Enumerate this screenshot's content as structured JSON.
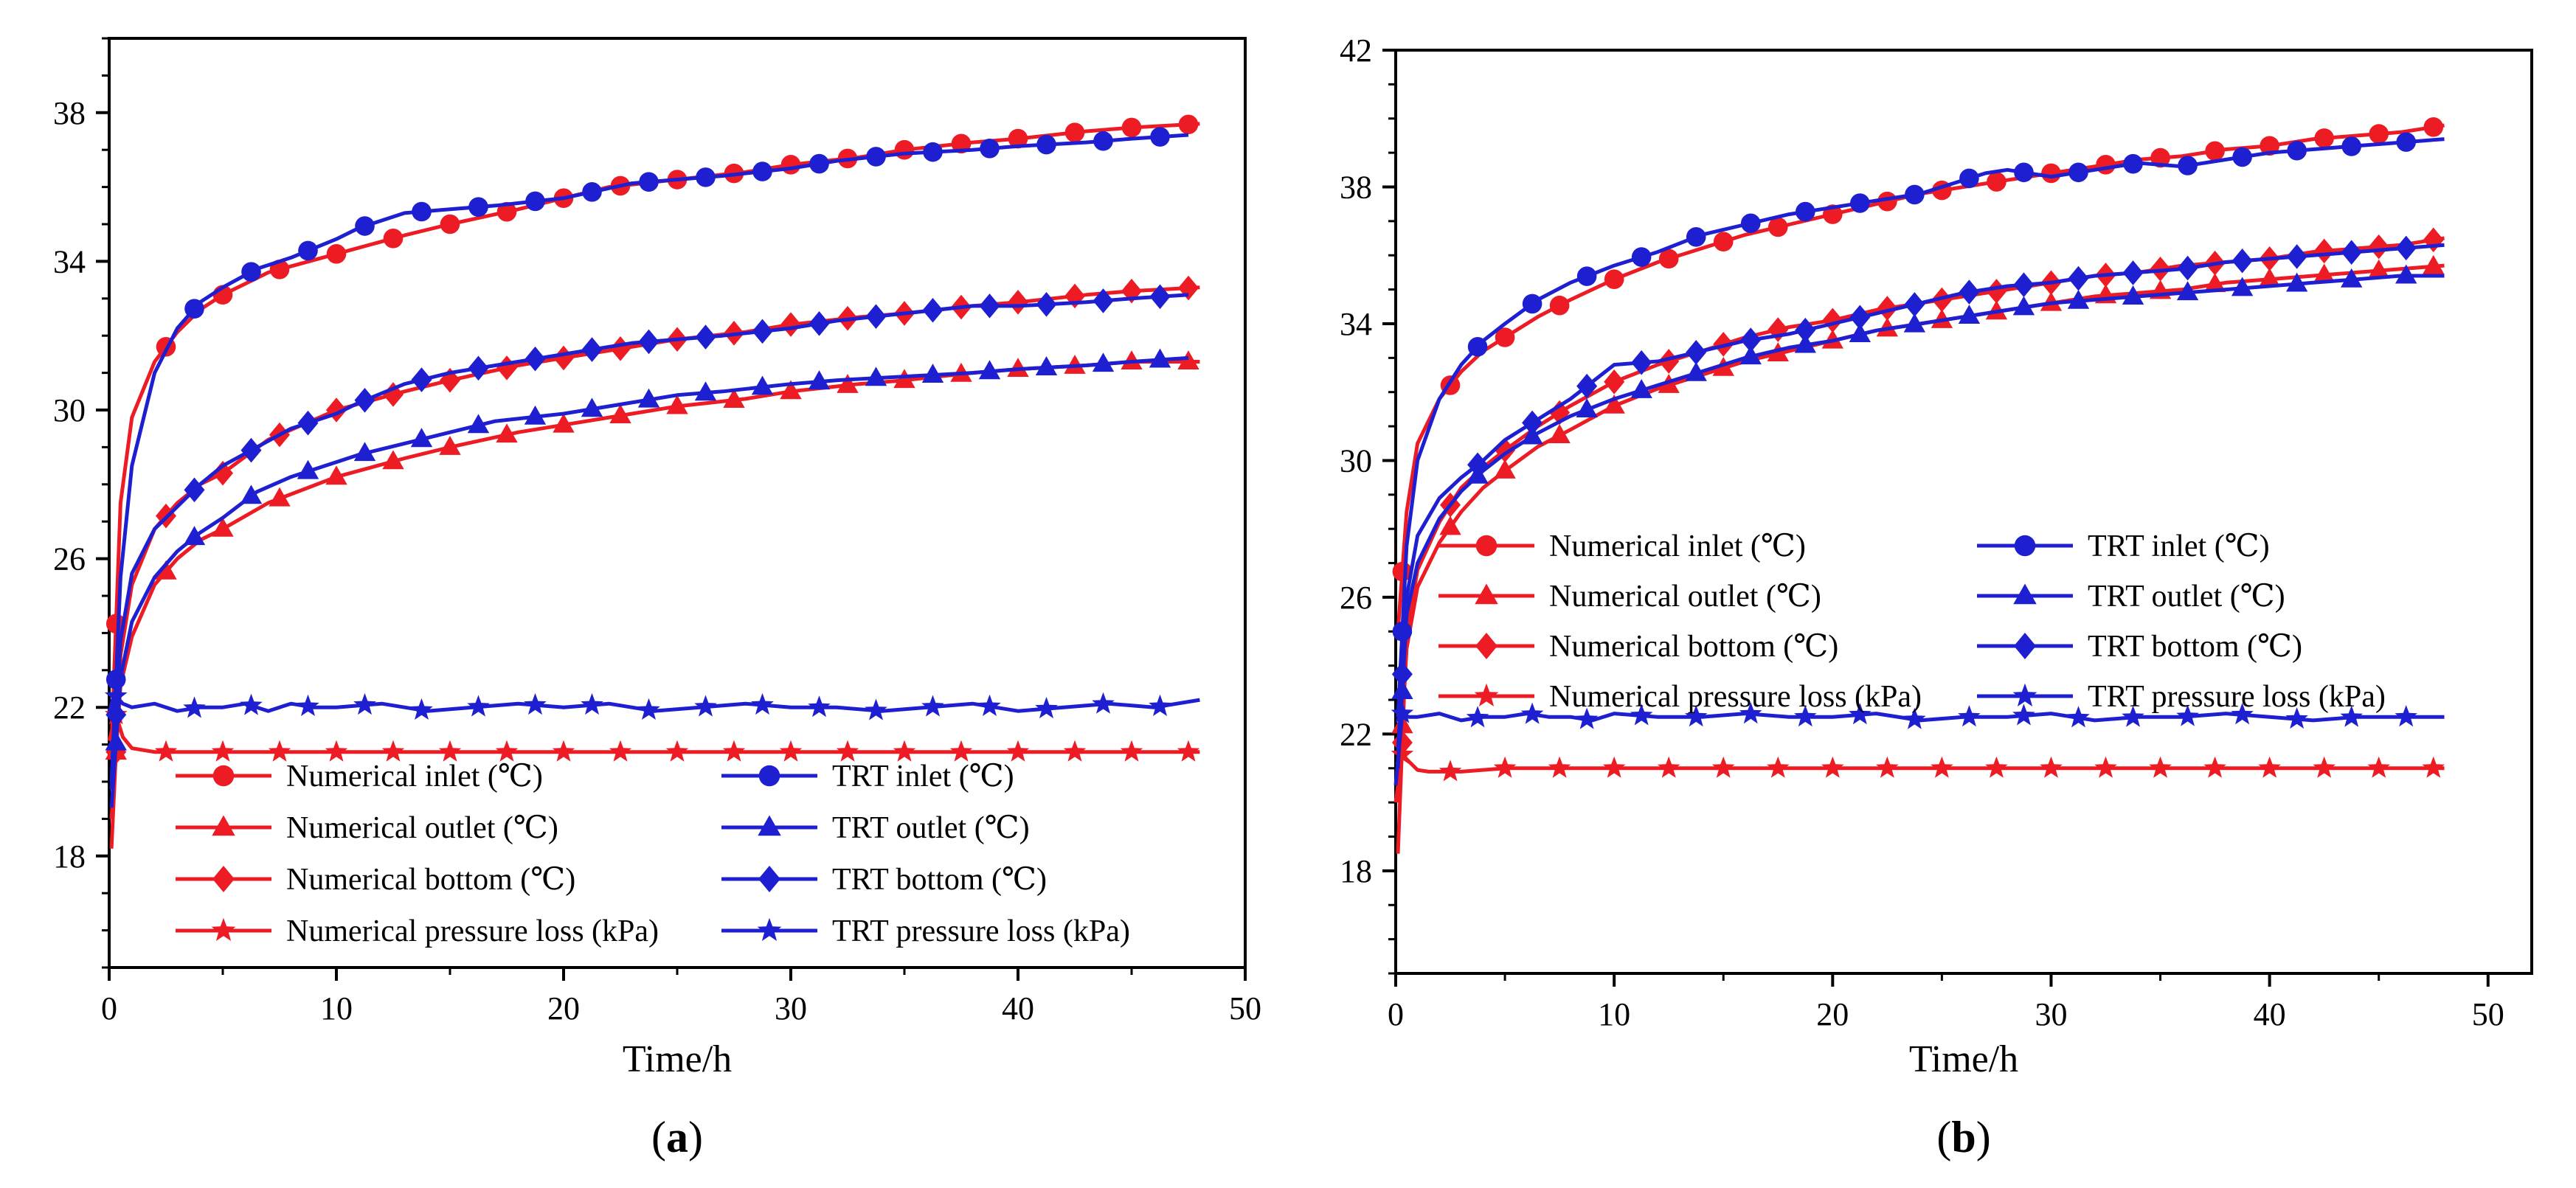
{
  "colors": {
    "numerical": "#ed1c24",
    "trt": "#1f1fd2",
    "axis": "#000000"
  },
  "legend_items": [
    {
      "label": "Numerical inlet (℃)",
      "marker": "circle",
      "color": "#ed1c24"
    },
    {
      "label": "Numerical outlet (℃)",
      "marker": "triangle",
      "color": "#ed1c24"
    },
    {
      "label": "Numerical bottom (℃)",
      "marker": "diamond",
      "color": "#ed1c24"
    },
    {
      "label": "Numerical pressure loss (kPa)",
      "marker": "star",
      "color": "#ed1c24"
    },
    {
      "label": "TRT inlet (℃)",
      "marker": "circle",
      "color": "#1f1fd2"
    },
    {
      "label": "TRT outlet (℃)",
      "marker": "triangle",
      "color": "#1f1fd2"
    },
    {
      "label": "TRT bottom (℃)",
      "marker": "diamond",
      "color": "#1f1fd2"
    },
    {
      "label": "TRT pressure loss (kPa)",
      "marker": "star",
      "color": "#1f1fd2"
    }
  ],
  "chart_data": [
    {
      "type": "line",
      "panel_label": "a",
      "xlabel": "Time/h",
      "ylabel": "",
      "xlim": [
        0,
        50
      ],
      "ylim": [
        15,
        40
      ],
      "xticks": [
        "0",
        "10",
        "20",
        "30",
        "40",
        "50"
      ],
      "yticks": [
        "18",
        "22",
        "26",
        "30",
        "34",
        "38"
      ],
      "ytick_values": [
        18,
        22,
        26,
        30,
        34,
        38
      ],
      "legend_position": "bottom",
      "series": [
        {
          "name": "Numerical inlet (℃)",
          "marker": "circle",
          "color": "#ed1c24",
          "x": [
            0.1,
            0.5,
            1,
            2,
            3,
            4,
            5,
            7,
            10,
            13,
            15,
            18,
            20,
            22,
            25,
            28,
            30,
            33,
            35,
            38,
            40,
            43,
            45,
            48
          ],
          "y": [
            21.0,
            27.5,
            29.8,
            31.3,
            32.1,
            32.7,
            33.1,
            33.7,
            34.2,
            34.7,
            35.0,
            35.4,
            35.7,
            36.0,
            36.2,
            36.4,
            36.6,
            36.8,
            37.0,
            37.2,
            37.3,
            37.5,
            37.6,
            37.7
          ]
        },
        {
          "name": "Numerical outlet (℃)",
          "marker": "triangle",
          "color": "#ed1c24",
          "x": [
            0.1,
            0.5,
            1,
            2,
            3,
            4,
            5,
            7,
            10,
            13,
            15,
            18,
            20,
            22,
            25,
            28,
            30,
            33,
            35,
            38,
            40,
            43,
            45,
            48
          ],
          "y": [
            19.0,
            22.6,
            23.9,
            25.3,
            26.0,
            26.5,
            26.8,
            27.5,
            28.2,
            28.7,
            29.0,
            29.4,
            29.6,
            29.8,
            30.1,
            30.3,
            30.5,
            30.7,
            30.8,
            31.0,
            31.1,
            31.2,
            31.3,
            31.3
          ]
        },
        {
          "name": "Numerical bottom (℃)",
          "marker": "diamond",
          "color": "#ed1c24",
          "x": [
            0.1,
            0.5,
            1,
            2,
            3,
            4,
            5,
            7,
            10,
            13,
            15,
            18,
            20,
            22,
            25,
            28,
            30,
            33,
            35,
            38,
            40,
            43,
            45,
            48
          ],
          "y": [
            18.2,
            23.4,
            25.3,
            26.8,
            27.5,
            28.0,
            28.3,
            29.2,
            30.0,
            30.5,
            30.8,
            31.2,
            31.4,
            31.6,
            31.9,
            32.1,
            32.3,
            32.5,
            32.6,
            32.8,
            32.9,
            33.1,
            33.2,
            33.3
          ]
        },
        {
          "name": "Numerical pressure loss (kPa)",
          "marker": "star",
          "color": "#ed1c24",
          "x": [
            0,
            0.3,
            0.6,
            1,
            1.5,
            2,
            3,
            5,
            8,
            10,
            15,
            20,
            25,
            30,
            35,
            40,
            45,
            48
          ],
          "y": [
            21.1,
            21.8,
            21.2,
            20.9,
            20.85,
            20.8,
            20.8,
            20.8,
            20.8,
            20.8,
            20.8,
            20.8,
            20.8,
            20.8,
            20.8,
            20.8,
            20.8,
            20.8
          ]
        },
        {
          "name": "TRT inlet (℃)",
          "marker": "circle",
          "color": "#1f1fd2",
          "x": [
            0.1,
            0.5,
            1,
            2,
            3,
            4,
            5,
            6.5,
            8,
            10,
            11,
            13,
            15,
            17,
            20,
            23,
            25,
            27,
            30,
            32,
            35,
            38,
            40,
            43,
            45,
            47.5
          ],
          "y": [
            20.0,
            25.5,
            28.5,
            31.0,
            32.2,
            32.9,
            33.3,
            33.8,
            34.1,
            34.6,
            34.9,
            35.3,
            35.4,
            35.5,
            35.7,
            36.1,
            36.2,
            36.3,
            36.5,
            36.7,
            36.9,
            37.0,
            37.1,
            37.2,
            37.3,
            37.4
          ]
        },
        {
          "name": "TRT outlet (℃)",
          "marker": "triangle",
          "color": "#1f1fd2",
          "x": [
            0.1,
            0.5,
            1,
            2,
            3,
            4,
            5,
            6.5,
            8,
            10,
            11,
            13,
            15,
            17,
            20,
            23,
            25,
            27,
            30,
            32,
            35,
            38,
            40,
            43,
            45,
            47.5
          ],
          "y": [
            19.3,
            22.8,
            24.3,
            25.5,
            26.2,
            26.7,
            27.1,
            27.8,
            28.2,
            28.6,
            28.8,
            29.1,
            29.4,
            29.7,
            29.9,
            30.2,
            30.4,
            30.5,
            30.7,
            30.8,
            30.9,
            31.0,
            31.1,
            31.2,
            31.3,
            31.4
          ]
        },
        {
          "name": "TRT bottom (℃)",
          "marker": "diamond",
          "color": "#1f1fd2",
          "x": [
            0.1,
            0.5,
            1,
            2,
            3,
            4,
            5,
            6.5,
            8,
            10,
            11,
            13,
            15,
            17,
            20,
            23,
            25,
            27,
            30,
            32,
            35,
            38,
            40,
            43,
            45,
            47.5
          ],
          "y": [
            19.8,
            23.8,
            25.6,
            26.8,
            27.4,
            28.0,
            28.5,
            29.0,
            29.5,
            29.9,
            30.2,
            30.7,
            31.0,
            31.2,
            31.5,
            31.8,
            31.9,
            32.0,
            32.2,
            32.4,
            32.6,
            32.8,
            32.8,
            32.9,
            33.0,
            33.1
          ]
        },
        {
          "name": "TRT pressure loss (kPa)",
          "marker": "star",
          "color": "#1f1fd2",
          "x": [
            0,
            0.3,
            0.6,
            1,
            2,
            3,
            4,
            5,
            6,
            7,
            8,
            9,
            10,
            12,
            14,
            16,
            18,
            20,
            22,
            24,
            26,
            28,
            30,
            32,
            34,
            36,
            38,
            40,
            42,
            44,
            46,
            48
          ],
          "y": [
            21.9,
            22.3,
            22.1,
            22.0,
            22.1,
            21.9,
            22.0,
            22.0,
            22.1,
            21.9,
            22.1,
            22.0,
            22.0,
            22.1,
            21.9,
            22.0,
            22.1,
            22.0,
            22.1,
            21.9,
            22.0,
            22.1,
            22.0,
            22.0,
            21.9,
            22.0,
            22.1,
            21.9,
            22.0,
            22.1,
            22.0,
            22.2
          ]
        }
      ]
    },
    {
      "type": "line",
      "panel_label": "b",
      "xlabel": "Time/h",
      "ylabel": "",
      "xlim": [
        0,
        52
      ],
      "ylim": [
        15,
        42
      ],
      "xticks": [
        "0",
        "10",
        "20",
        "30",
        "40",
        "50"
      ],
      "yticks": [
        "18",
        "22",
        "26",
        "30",
        "34",
        "38",
        "42"
      ],
      "ytick_values": [
        18,
        22,
        26,
        30,
        34,
        38,
        42
      ],
      "legend_position": "center",
      "series": [
        {
          "name": "Numerical inlet (℃)",
          "marker": "circle",
          "color": "#ed1c24",
          "x": [
            0.1,
            0.5,
            1,
            2,
            3,
            4,
            5,
            6.5,
            8,
            10,
            12,
            14,
            16,
            18,
            20,
            22,
            24,
            26,
            28,
            30,
            32,
            34,
            36,
            38,
            40,
            42,
            44,
            46,
            48
          ],
          "y": [
            25.0,
            28.5,
            30.5,
            31.8,
            32.6,
            33.2,
            33.6,
            34.2,
            34.7,
            35.3,
            35.8,
            36.2,
            36.6,
            36.9,
            37.2,
            37.5,
            37.8,
            38.0,
            38.2,
            38.4,
            38.6,
            38.8,
            38.9,
            39.1,
            39.2,
            39.4,
            39.5,
            39.6,
            39.8
          ]
        },
        {
          "name": "Numerical outlet (℃)",
          "marker": "triangle",
          "color": "#ed1c24",
          "x": [
            0.1,
            0.5,
            1,
            2,
            3,
            4,
            5,
            6.5,
            8,
            10,
            12,
            14,
            16,
            18,
            20,
            22,
            24,
            26,
            28,
            30,
            32,
            34,
            36,
            38,
            40,
            42,
            44,
            46,
            48
          ],
          "y": [
            20.0,
            24.5,
            26.3,
            27.6,
            28.5,
            29.2,
            29.7,
            30.4,
            30.9,
            31.6,
            32.1,
            32.5,
            32.9,
            33.2,
            33.5,
            33.8,
            34.0,
            34.2,
            34.4,
            34.6,
            34.8,
            34.9,
            35.0,
            35.2,
            35.3,
            35.4,
            35.5,
            35.6,
            35.7
          ]
        },
        {
          "name": "Numerical bottom (℃)",
          "marker": "diamond",
          "color": "#ed1c24",
          "x": [
            0.1,
            0.5,
            1,
            2,
            3,
            4,
            5,
            6.5,
            8,
            10,
            12,
            14,
            16,
            18,
            20,
            22,
            24,
            26,
            28,
            30,
            32,
            34,
            36,
            38,
            40,
            42,
            44,
            46,
            48
          ],
          "y": [
            18.5,
            25.0,
            26.8,
            28.2,
            29.2,
            29.8,
            30.3,
            31.0,
            31.6,
            32.3,
            32.8,
            33.2,
            33.6,
            33.9,
            34.1,
            34.4,
            34.6,
            34.8,
            35.0,
            35.2,
            35.4,
            35.5,
            35.7,
            35.8,
            35.9,
            36.1,
            36.2,
            36.3,
            36.5
          ]
        },
        {
          "name": "Numerical pressure loss (kPa)",
          "marker": "star",
          "color": "#ed1c24",
          "x": [
            0,
            0.3,
            0.6,
            1,
            1.5,
            2,
            3,
            5,
            8,
            10,
            15,
            20,
            25,
            30,
            35,
            40,
            45,
            48
          ],
          "y": [
            20.0,
            21.4,
            21.2,
            20.95,
            20.9,
            20.9,
            20.9,
            21.0,
            21.0,
            21.0,
            21.0,
            21.0,
            21.0,
            21.0,
            21.0,
            21.0,
            21.0,
            21.0
          ]
        },
        {
          "name": "TRT inlet (℃)",
          "marker": "circle",
          "color": "#1f1fd2",
          "x": [
            0.1,
            0.5,
            1,
            2,
            3,
            4,
            5,
            6.5,
            8,
            10,
            12,
            14,
            16,
            18,
            20,
            22,
            24,
            26,
            27,
            28,
            30,
            32,
            34,
            36,
            38,
            40,
            42,
            44,
            46,
            48
          ],
          "y": [
            22.5,
            27.5,
            30.0,
            31.8,
            32.8,
            33.5,
            34.0,
            34.7,
            35.2,
            35.7,
            36.1,
            36.6,
            36.9,
            37.2,
            37.4,
            37.6,
            37.8,
            38.2,
            38.4,
            38.5,
            38.3,
            38.5,
            38.7,
            38.6,
            38.8,
            39.0,
            39.1,
            39.2,
            39.3,
            39.4
          ]
        },
        {
          "name": "TRT outlet (℃)",
          "marker": "triangle",
          "color": "#1f1fd2",
          "x": [
            0.1,
            0.5,
            1,
            2,
            3,
            4,
            5,
            6.5,
            8,
            10,
            12,
            14,
            16,
            18,
            20,
            22,
            24,
            26,
            28,
            30,
            32,
            34,
            36,
            38,
            40,
            42,
            44,
            46,
            48
          ],
          "y": [
            21.0,
            25.5,
            27.0,
            28.3,
            29.1,
            29.7,
            30.2,
            30.8,
            31.3,
            31.8,
            32.2,
            32.6,
            33.0,
            33.3,
            33.5,
            33.8,
            34.0,
            34.2,
            34.4,
            34.6,
            34.7,
            34.8,
            34.9,
            35.0,
            35.1,
            35.2,
            35.3,
            35.4,
            35.4
          ]
        },
        {
          "name": "TRT bottom (℃)",
          "marker": "diamond",
          "color": "#1f1fd2",
          "x": [
            0.1,
            0.5,
            1,
            2,
            3,
            4,
            5,
            6.5,
            8,
            10,
            12,
            14,
            16,
            18,
            20,
            22,
            24,
            26,
            28,
            30,
            32,
            34,
            36,
            38,
            40,
            42,
            44,
            46,
            48
          ],
          "y": [
            21.5,
            26.0,
            27.8,
            28.9,
            29.5,
            30.0,
            30.6,
            31.2,
            31.8,
            32.8,
            32.9,
            33.2,
            33.5,
            33.7,
            34.0,
            34.3,
            34.6,
            34.9,
            35.1,
            35.2,
            35.4,
            35.5,
            35.6,
            35.8,
            35.9,
            36.0,
            36.1,
            36.2,
            36.3
          ]
        },
        {
          "name": "TRT pressure loss (kPa)",
          "marker": "star",
          "color": "#1f1fd2",
          "x": [
            0,
            0.3,
            0.6,
            1,
            2,
            3,
            4,
            5,
            6,
            7,
            8,
            9,
            10,
            12,
            14,
            16,
            18,
            20,
            22,
            24,
            26,
            28,
            30,
            32,
            34,
            36,
            38,
            40,
            42,
            44,
            46,
            48
          ],
          "y": [
            20.5,
            22.6,
            22.5,
            22.5,
            22.6,
            22.4,
            22.5,
            22.5,
            22.6,
            22.5,
            22.5,
            22.4,
            22.6,
            22.5,
            22.5,
            22.6,
            22.5,
            22.5,
            22.6,
            22.4,
            22.5,
            22.5,
            22.6,
            22.4,
            22.5,
            22.5,
            22.6,
            22.5,
            22.4,
            22.5,
            22.5,
            22.5
          ]
        }
      ]
    }
  ]
}
